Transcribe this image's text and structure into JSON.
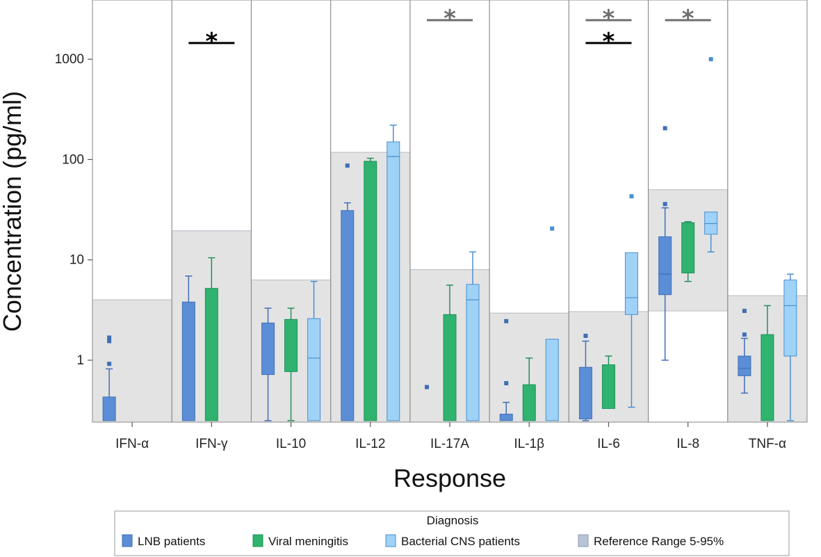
{
  "chart_data": {
    "type": "box",
    "ylabel": "Concentration (pg/ml)",
    "xlabel": "Response",
    "yscale": "log",
    "ylim": [
      0.25,
      3600
    ],
    "yticks": [
      {
        "value": 1,
        "label": "1"
      },
      {
        "value": 10,
        "label": "10"
      },
      {
        "value": 100,
        "label": "100"
      },
      {
        "value": 1000,
        "label": "1000"
      }
    ],
    "categories": [
      "IFN-α",
      "IFN-γ",
      "IL-10",
      "IL-12",
      "IL-17A",
      "IL-1β",
      "IL-6",
      "IL-8",
      "TNF-α"
    ],
    "reference_range": {
      "name": "Reference Range 5-95%",
      "ranges": [
        {
          "low": 0.25,
          "high": 4.0
        },
        {
          "low": 0.25,
          "high": 19.5
        },
        {
          "low": 0.25,
          "high": 6.3
        },
        {
          "low": 0.25,
          "high": 118
        },
        {
          "low": 0.25,
          "high": 8.0
        },
        {
          "low": 0.25,
          "high": 2.95
        },
        {
          "low": 0.25,
          "high": 3.05
        },
        {
          "low": 3.1,
          "high": 50
        },
        {
          "low": 0.25,
          "high": 4.4
        }
      ]
    },
    "series": [
      {
        "name": "LNB patients",
        "color": "#5B8ED6",
        "edge": "#3F6FB5",
        "boxes": [
          {
            "category": "IFN-α",
            "q1": 0.25,
            "median": 0.25,
            "q3": 0.43,
            "whislo": 0.25,
            "whishi": 0.82,
            "outliers": [
              0.92,
              1.55,
              1.68
            ]
          },
          {
            "category": "IFN-γ",
            "q1": 0.25,
            "median": 0.25,
            "q3": 3.8,
            "whislo": 0.25,
            "whishi": 6.9,
            "outliers": []
          },
          {
            "category": "IL-10",
            "q1": 0.72,
            "median": 0.72,
            "q3": 2.35,
            "whislo": 0.25,
            "whishi": 3.3,
            "outliers": []
          },
          {
            "category": "IL-12",
            "q1": 0.25,
            "median": 0.25,
            "q3": 31,
            "whislo": 0.25,
            "whishi": 37,
            "outliers": [
              87
            ]
          },
          {
            "category": "IL-17A",
            "q1": 0.25,
            "median": 0.25,
            "q3": 0.25,
            "whislo": 0.25,
            "whishi": 0.25,
            "outliers": [
              0.54
            ]
          },
          {
            "category": "IL-1β",
            "q1": 0.25,
            "median": 0.25,
            "q3": 0.29,
            "whislo": 0.25,
            "whishi": 0.38,
            "outliers": [
              0.59,
              2.45
            ]
          },
          {
            "category": "IL-6",
            "q1": 0.26,
            "median": 0.26,
            "q3": 0.85,
            "whislo": 0.25,
            "whishi": 1.55,
            "outliers": [
              1.75
            ]
          },
          {
            "category": "IL-8",
            "q1": 4.5,
            "median": 7.2,
            "q3": 17,
            "whislo": 1.0,
            "whishi": 33,
            "outliers": [
              36,
              205
            ]
          },
          {
            "category": "TNF-α",
            "q1": 0.7,
            "median": 0.83,
            "q3": 1.1,
            "whislo": 0.47,
            "whishi": 1.65,
            "outliers": [
              1.8,
              3.1
            ]
          }
        ]
      },
      {
        "name": "Viral meningitis",
        "color": "#2FB36F",
        "edge": "#21905A",
        "boxes": [
          {
            "category": "IFN-α",
            "q1": 0.25,
            "median": 0.25,
            "q3": 0.25,
            "whislo": 0.25,
            "whishi": 0.25,
            "outliers": []
          },
          {
            "category": "IFN-γ",
            "q1": 0.25,
            "median": 0.25,
            "q3": 5.2,
            "whislo": 0.25,
            "whishi": 10.5,
            "outliers": []
          },
          {
            "category": "IL-10",
            "q1": 0.77,
            "median": 0.77,
            "q3": 2.55,
            "whislo": 0.25,
            "whishi": 3.3,
            "outliers": []
          },
          {
            "category": "IL-12",
            "q1": 0.25,
            "median": 0.25,
            "q3": 96,
            "whislo": 0.25,
            "whishi": 103,
            "outliers": []
          },
          {
            "category": "IL-17A",
            "q1": 0.25,
            "median": 0.25,
            "q3": 2.85,
            "whislo": 0.25,
            "whishi": 5.6,
            "outliers": []
          },
          {
            "category": "IL-1β",
            "q1": 0.25,
            "median": 0.25,
            "q3": 0.57,
            "whislo": 0.25,
            "whishi": 1.05,
            "outliers": []
          },
          {
            "category": "IL-6",
            "q1": 0.33,
            "median": 0.33,
            "q3": 0.9,
            "whislo": 0.33,
            "whishi": 1.1,
            "outliers": []
          },
          {
            "category": "IL-8",
            "q1": 7.4,
            "median": 7.4,
            "q3": 23.5,
            "whislo": 6.1,
            "whishi": 24,
            "outliers": []
          },
          {
            "category": "TNF-α",
            "q1": 0.25,
            "median": 0.25,
            "q3": 1.8,
            "whislo": 0.25,
            "whishi": 3.5,
            "outliers": []
          }
        ]
      },
      {
        "name": "Bacterial CNS patients",
        "color": "#9FD2F7",
        "edge": "#4A8FCF",
        "boxes": [
          {
            "category": "IFN-α",
            "q1": 0.25,
            "median": 0.25,
            "q3": 0.25,
            "whislo": 0.25,
            "whishi": 0.25,
            "outliers": []
          },
          {
            "category": "IFN-γ",
            "q1": 0.25,
            "median": 0.25,
            "q3": 0.25,
            "whislo": 0.25,
            "whishi": 0.25,
            "outliers": []
          },
          {
            "category": "IL-10",
            "q1": 0.25,
            "median": 1.05,
            "q3": 2.6,
            "whislo": 0.25,
            "whishi": 6.1,
            "outliers": []
          },
          {
            "category": "IL-12",
            "q1": 0.25,
            "median": 107,
            "q3": 150,
            "whislo": 0.25,
            "whishi": 220,
            "outliers": []
          },
          {
            "category": "IL-17A",
            "q1": 0.25,
            "median": 4.0,
            "q3": 5.7,
            "whislo": 0.25,
            "whishi": 12,
            "outliers": []
          },
          {
            "category": "IL-1β",
            "q1": 0.25,
            "median": 0.25,
            "q3": 1.62,
            "whislo": 0.25,
            "whishi": 1.62,
            "outliers": [
              20.5
            ]
          },
          {
            "category": "IL-6",
            "q1": 2.85,
            "median": 4.2,
            "q3": 11.8,
            "whislo": 0.34,
            "whishi": 11.8,
            "outliers": [
              43
            ]
          },
          {
            "category": "IL-8",
            "q1": 18,
            "median": 23,
            "q3": 30,
            "whislo": 12,
            "whishi": 30,
            "outliers": [
              1000
            ]
          },
          {
            "category": "TNF-α",
            "q1": 1.1,
            "median": 3.5,
            "q3": 6.3,
            "whislo": 0.25,
            "whishi": 7.2,
            "outliers": []
          }
        ]
      }
    ],
    "significance": [
      {
        "category": "IFN-γ",
        "label": "*",
        "color": "#000000",
        "value": 1450
      },
      {
        "category": "IL-17A",
        "label": "*",
        "color": "#6E6E6E",
        "value": 2450
      },
      {
        "category": "IL-6",
        "label": "*",
        "color": "#6E6E6E",
        "value": 2450
      },
      {
        "category": "IL-6",
        "label": "*",
        "color": "#000000",
        "value": 1450
      },
      {
        "category": "IL-8",
        "label": "*",
        "color": "#6E6E6E",
        "value": 2450
      }
    ],
    "legend": {
      "title": "Diagnosis",
      "position": "bottom",
      "entries": [
        {
          "label": "LNB patients",
          "fill": "#5B8ED6",
          "stroke": "#3F6FB5"
        },
        {
          "label": "Viral meningitis",
          "fill": "#2FB36F",
          "stroke": "#21905A"
        },
        {
          "label": "Bacterial CNS patients",
          "fill": "#9FD2F7",
          "stroke": "#4A8FCF"
        },
        {
          "label": "Reference Range 5-95%",
          "fill": "#B9C3D6",
          "stroke": "#8E9AB0"
        }
      ]
    }
  }
}
